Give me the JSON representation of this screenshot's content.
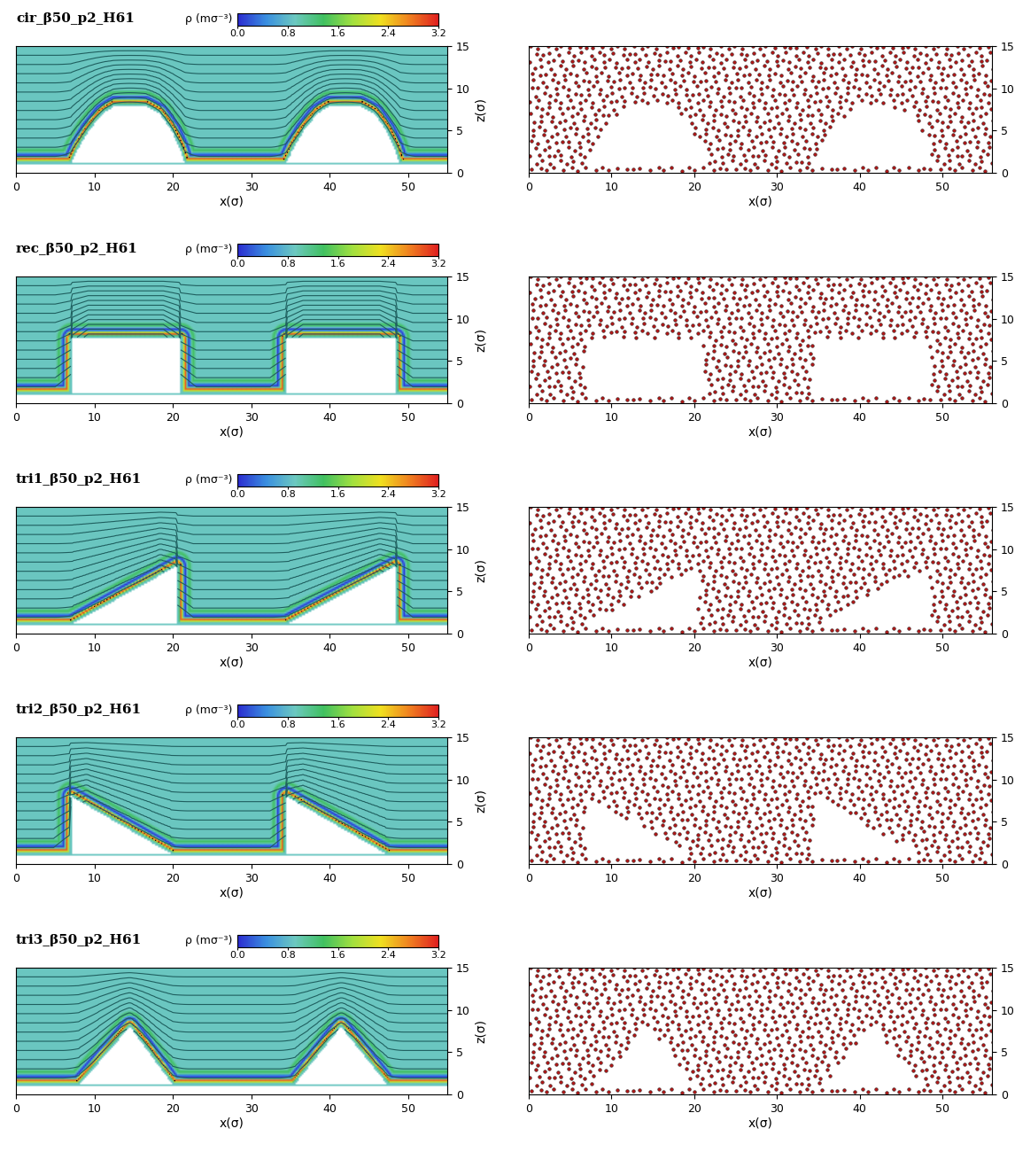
{
  "chart_data": [
    {
      "type": "contour",
      "title": "cir_β50_p2_H61",
      "colorbar": {
        "label": "ρ (mσ⁻³)",
        "range": [
          0,
          3.2
        ],
        "ticks": [
          {
            "value": 0,
            "label": "0.0"
          },
          0.8,
          1.6,
          2.4,
          3.2
        ]
      },
      "xlabel": "x(σ)",
      "ylabel": "z(σ)",
      "xlim": [
        0,
        55
      ],
      "ylim": [
        0,
        15
      ],
      "xticks": [
        0,
        10,
        20,
        30,
        40,
        50
      ],
      "yticks": [
        0,
        5,
        10,
        15
      ],
      "wall_z": 1,
      "bulk_density": 0.9,
      "obstacles": [
        [
          [
            7,
            1
          ],
          [
            8,
            3
          ],
          [
            9.3,
            5
          ],
          [
            11,
            7
          ],
          [
            12.5,
            7.9
          ],
          [
            16.5,
            7.9
          ],
          [
            18.3,
            7
          ],
          [
            19.8,
            5
          ],
          [
            20.8,
            3
          ],
          [
            21.5,
            1
          ]
        ],
        [
          [
            34.5,
            1
          ],
          [
            35.5,
            3
          ],
          [
            36.8,
            5
          ],
          [
            38.5,
            7
          ],
          [
            40,
            7.9
          ],
          [
            44,
            7.9
          ],
          [
            45.8,
            7
          ],
          [
            47.3,
            5
          ],
          [
            48.3,
            3
          ],
          [
            49,
            1
          ]
        ]
      ]
    },
    {
      "type": "scatter",
      "color": "#b01818",
      "xlabel": "x(σ)",
      "ylabel": "z(σ)",
      "xlim": [
        0,
        56
      ],
      "ylim": [
        0,
        15
      ],
      "xticks": [
        0,
        10,
        20,
        30,
        40,
        50
      ],
      "yticks": [
        0,
        5,
        10,
        15
      ],
      "obstacles": [
        [
          [
            7,
            1
          ],
          [
            8,
            3
          ],
          [
            9.3,
            5
          ],
          [
            11,
            7
          ],
          [
            12.5,
            7.9
          ],
          [
            16.5,
            7.9
          ],
          [
            18.3,
            7
          ],
          [
            19.8,
            5
          ],
          [
            20.8,
            3
          ],
          [
            21.5,
            1
          ]
        ],
        [
          [
            34.5,
            1
          ],
          [
            35.5,
            3
          ],
          [
            36.8,
            5
          ],
          [
            38.5,
            7
          ],
          [
            40,
            7.9
          ],
          [
            44,
            7.9
          ],
          [
            45.8,
            7
          ],
          [
            47.3,
            5
          ],
          [
            48.3,
            3
          ],
          [
            49,
            1
          ]
        ]
      ]
    },
    {
      "type": "contour",
      "title": "rec_β50_p2_H61",
      "colorbar": {
        "label": "ρ (mσ⁻³)",
        "range": [
          0,
          3.2
        ],
        "ticks": [
          {
            "value": 0,
            "label": "0.0"
          },
          0.8,
          1.6,
          2.4,
          3.2
        ]
      },
      "xlabel": "x(σ)",
      "ylabel": "z(σ)",
      "xlim": [
        0,
        55
      ],
      "ylim": [
        0,
        15
      ],
      "xticks": [
        0,
        10,
        20,
        30,
        40,
        50
      ],
      "yticks": [
        0,
        5,
        10,
        15
      ],
      "wall_z": 1,
      "bulk_density": 0.9,
      "obstacles": [
        [
          [
            7,
            1
          ],
          [
            7,
            7.7
          ],
          [
            21,
            7.7
          ],
          [
            21,
            1
          ]
        ],
        [
          [
            34.5,
            1
          ],
          [
            34.5,
            7.7
          ],
          [
            48.5,
            7.7
          ],
          [
            48.5,
            1
          ]
        ]
      ]
    },
    {
      "type": "scatter",
      "color": "#b01818",
      "xlabel": "x(σ)",
      "ylabel": "z(σ)",
      "xlim": [
        0,
        56
      ],
      "ylim": [
        0,
        15
      ],
      "xticks": [
        0,
        10,
        20,
        30,
        40,
        50
      ],
      "yticks": [
        0,
        5,
        10,
        15
      ],
      "obstacles": [
        [
          [
            7,
            1
          ],
          [
            7,
            7.7
          ],
          [
            21,
            7.7
          ],
          [
            21,
            1
          ]
        ],
        [
          [
            34.5,
            1
          ],
          [
            34.5,
            7.7
          ],
          [
            48.5,
            7.7
          ],
          [
            48.5,
            1
          ]
        ]
      ]
    },
    {
      "type": "contour",
      "title": "tri1_β50_p2_H61",
      "colorbar": {
        "label": "ρ (mσ⁻³)",
        "range": [
          0,
          3.2
        ],
        "ticks": [
          {
            "value": 0,
            "label": "0.0"
          },
          0.8,
          1.6,
          2.4,
          3.2
        ]
      },
      "xlabel": "x(σ)",
      "ylabel": "z(σ)",
      "xlim": [
        0,
        55
      ],
      "ylim": [
        0,
        15
      ],
      "xticks": [
        0,
        10,
        20,
        30,
        40,
        50
      ],
      "yticks": [
        0,
        5,
        10,
        15
      ],
      "wall_z": 1,
      "bulk_density": 0.9,
      "obstacles": [
        [
          [
            7,
            1
          ],
          [
            20.5,
            8
          ],
          [
            20.5,
            1
          ]
        ],
        [
          [
            34.5,
            1
          ],
          [
            48.5,
            8
          ],
          [
            48.5,
            1
          ]
        ]
      ]
    },
    {
      "type": "scatter",
      "color": "#b01818",
      "xlabel": "x(σ)",
      "ylabel": "z(σ)",
      "xlim": [
        0,
        56
      ],
      "ylim": [
        0,
        15
      ],
      "xticks": [
        0,
        10,
        20,
        30,
        40,
        50
      ],
      "yticks": [
        0,
        5,
        10,
        15
      ],
      "obstacles": [
        [
          [
            7,
            1
          ],
          [
            20.5,
            8
          ],
          [
            20.5,
            1
          ]
        ],
        [
          [
            34.5,
            1
          ],
          [
            48.5,
            8
          ],
          [
            48.5,
            1
          ]
        ]
      ]
    },
    {
      "type": "contour",
      "title": "tri2_β50_p2_H61",
      "colorbar": {
        "label": "ρ (mσ⁻³)",
        "range": [
          0,
          3.2
        ],
        "ticks": [
          {
            "value": 0,
            "label": "0.0"
          },
          0.8,
          1.6,
          2.4,
          3.2
        ]
      },
      "xlabel": "x(σ)",
      "ylabel": "z(σ)",
      "xlim": [
        0,
        55
      ],
      "ylim": [
        0,
        15
      ],
      "xticks": [
        0,
        10,
        20,
        30,
        40,
        50
      ],
      "yticks": [
        0,
        5,
        10,
        15
      ],
      "wall_z": 1,
      "bulk_density": 0.9,
      "obstacles": [
        [
          [
            7,
            1
          ],
          [
            7,
            8
          ],
          [
            20,
            1
          ]
        ],
        [
          [
            34.5,
            1
          ],
          [
            34.5,
            8
          ],
          [
            47.5,
            1
          ]
        ]
      ]
    },
    {
      "type": "scatter",
      "color": "#b01818",
      "xlabel": "x(σ)",
      "ylabel": "z(σ)",
      "xlim": [
        0,
        56
      ],
      "ylim": [
        0,
        15
      ],
      "xticks": [
        0,
        10,
        20,
        30,
        40,
        50
      ],
      "yticks": [
        0,
        5,
        10,
        15
      ],
      "obstacles": [
        [
          [
            7,
            1
          ],
          [
            7,
            8
          ],
          [
            20,
            1
          ]
        ],
        [
          [
            34.5,
            1
          ],
          [
            34.5,
            8
          ],
          [
            47.5,
            1
          ]
        ]
      ]
    },
    {
      "type": "contour",
      "title": "tri3_β50_p2_H61",
      "colorbar": {
        "label": "ρ (mσ⁻³)",
        "range": [
          0,
          3.2
        ],
        "ticks": [
          {
            "value": 0,
            "label": "0.0"
          },
          0.8,
          1.6,
          2.4,
          3.2
        ]
      },
      "xlabel": "x(σ)",
      "ylabel": "z(σ)",
      "xlim": [
        0,
        55
      ],
      "ylim": [
        0,
        15
      ],
      "xticks": [
        0,
        10,
        20,
        30,
        40,
        50
      ],
      "yticks": [
        0,
        5,
        10,
        15
      ],
      "wall_z": 1,
      "bulk_density": 0.9,
      "obstacles": [
        [
          [
            8,
            1
          ],
          [
            14.5,
            8
          ],
          [
            20,
            1
          ]
        ],
        [
          [
            35.5,
            1
          ],
          [
            41.5,
            8
          ],
          [
            47.5,
            1
          ]
        ]
      ]
    },
    {
      "type": "scatter",
      "color": "#b01818",
      "xlabel": "x(σ)",
      "ylabel": "z(σ)",
      "xlim": [
        0,
        56
      ],
      "ylim": [
        0,
        15
      ],
      "xticks": [
        0,
        10,
        20,
        30,
        40,
        50
      ],
      "yticks": [
        0,
        5,
        10,
        15
      ],
      "obstacles": [
        [
          [
            8,
            1
          ],
          [
            14.5,
            8
          ],
          [
            20,
            1
          ]
        ],
        [
          [
            35.5,
            1
          ],
          [
            41.5,
            8
          ],
          [
            47.5,
            1
          ]
        ]
      ]
    }
  ]
}
